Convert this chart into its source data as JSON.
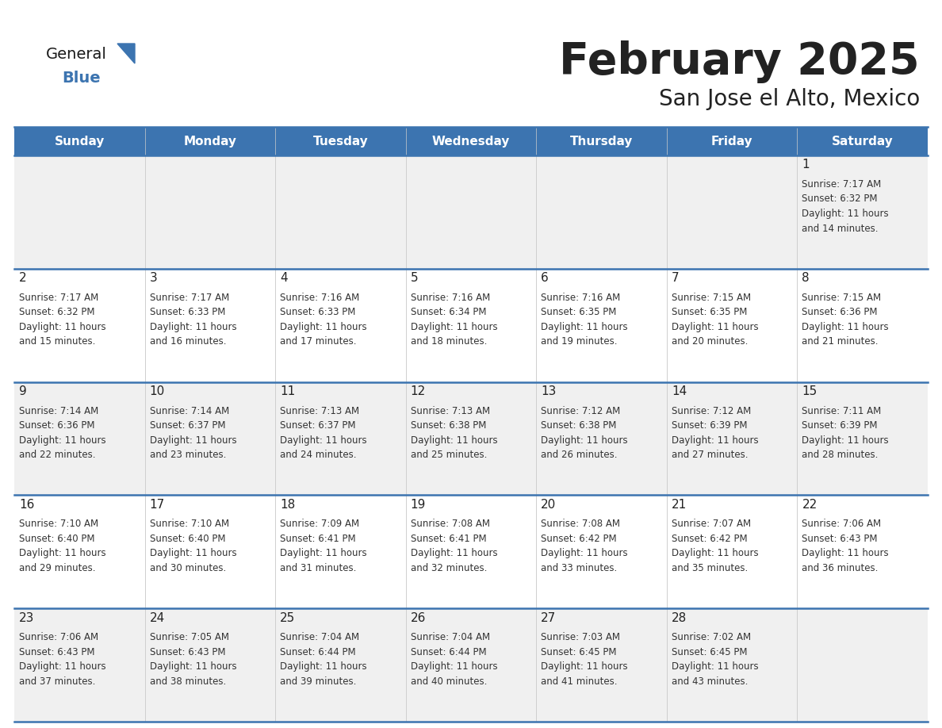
{
  "title": "February 2025",
  "subtitle": "San Jose el Alto, Mexico",
  "header_bg": "#3c74b0",
  "header_text": "#ffffff",
  "cell_bg_odd": "#f0f0f0",
  "cell_bg_even": "#ffffff",
  "border_color": "#3c74b0",
  "text_color": "#222222",
  "info_color": "#333333",
  "days_of_week": [
    "Sunday",
    "Monday",
    "Tuesday",
    "Wednesday",
    "Thursday",
    "Friday",
    "Saturday"
  ],
  "logo_general_color": "#1a1a1a",
  "logo_blue_color": "#3c74b0",
  "logo_triangle_color": "#3c74b0",
  "weeks": [
    [
      {
        "day": "",
        "info": ""
      },
      {
        "day": "",
        "info": ""
      },
      {
        "day": "",
        "info": ""
      },
      {
        "day": "",
        "info": ""
      },
      {
        "day": "",
        "info": ""
      },
      {
        "day": "",
        "info": ""
      },
      {
        "day": "1",
        "info": "Sunrise: 7:17 AM\nSunset: 6:32 PM\nDaylight: 11 hours\nand 14 minutes."
      }
    ],
    [
      {
        "day": "2",
        "info": "Sunrise: 7:17 AM\nSunset: 6:32 PM\nDaylight: 11 hours\nand 15 minutes."
      },
      {
        "day": "3",
        "info": "Sunrise: 7:17 AM\nSunset: 6:33 PM\nDaylight: 11 hours\nand 16 minutes."
      },
      {
        "day": "4",
        "info": "Sunrise: 7:16 AM\nSunset: 6:33 PM\nDaylight: 11 hours\nand 17 minutes."
      },
      {
        "day": "5",
        "info": "Sunrise: 7:16 AM\nSunset: 6:34 PM\nDaylight: 11 hours\nand 18 minutes."
      },
      {
        "day": "6",
        "info": "Sunrise: 7:16 AM\nSunset: 6:35 PM\nDaylight: 11 hours\nand 19 minutes."
      },
      {
        "day": "7",
        "info": "Sunrise: 7:15 AM\nSunset: 6:35 PM\nDaylight: 11 hours\nand 20 minutes."
      },
      {
        "day": "8",
        "info": "Sunrise: 7:15 AM\nSunset: 6:36 PM\nDaylight: 11 hours\nand 21 minutes."
      }
    ],
    [
      {
        "day": "9",
        "info": "Sunrise: 7:14 AM\nSunset: 6:36 PM\nDaylight: 11 hours\nand 22 minutes."
      },
      {
        "day": "10",
        "info": "Sunrise: 7:14 AM\nSunset: 6:37 PM\nDaylight: 11 hours\nand 23 minutes."
      },
      {
        "day": "11",
        "info": "Sunrise: 7:13 AM\nSunset: 6:37 PM\nDaylight: 11 hours\nand 24 minutes."
      },
      {
        "day": "12",
        "info": "Sunrise: 7:13 AM\nSunset: 6:38 PM\nDaylight: 11 hours\nand 25 minutes."
      },
      {
        "day": "13",
        "info": "Sunrise: 7:12 AM\nSunset: 6:38 PM\nDaylight: 11 hours\nand 26 minutes."
      },
      {
        "day": "14",
        "info": "Sunrise: 7:12 AM\nSunset: 6:39 PM\nDaylight: 11 hours\nand 27 minutes."
      },
      {
        "day": "15",
        "info": "Sunrise: 7:11 AM\nSunset: 6:39 PM\nDaylight: 11 hours\nand 28 minutes."
      }
    ],
    [
      {
        "day": "16",
        "info": "Sunrise: 7:10 AM\nSunset: 6:40 PM\nDaylight: 11 hours\nand 29 minutes."
      },
      {
        "day": "17",
        "info": "Sunrise: 7:10 AM\nSunset: 6:40 PM\nDaylight: 11 hours\nand 30 minutes."
      },
      {
        "day": "18",
        "info": "Sunrise: 7:09 AM\nSunset: 6:41 PM\nDaylight: 11 hours\nand 31 minutes."
      },
      {
        "day": "19",
        "info": "Sunrise: 7:08 AM\nSunset: 6:41 PM\nDaylight: 11 hours\nand 32 minutes."
      },
      {
        "day": "20",
        "info": "Sunrise: 7:08 AM\nSunset: 6:42 PM\nDaylight: 11 hours\nand 33 minutes."
      },
      {
        "day": "21",
        "info": "Sunrise: 7:07 AM\nSunset: 6:42 PM\nDaylight: 11 hours\nand 35 minutes."
      },
      {
        "day": "22",
        "info": "Sunrise: 7:06 AM\nSunset: 6:43 PM\nDaylight: 11 hours\nand 36 minutes."
      }
    ],
    [
      {
        "day": "23",
        "info": "Sunrise: 7:06 AM\nSunset: 6:43 PM\nDaylight: 11 hours\nand 37 minutes."
      },
      {
        "day": "24",
        "info": "Sunrise: 7:05 AM\nSunset: 6:43 PM\nDaylight: 11 hours\nand 38 minutes."
      },
      {
        "day": "25",
        "info": "Sunrise: 7:04 AM\nSunset: 6:44 PM\nDaylight: 11 hours\nand 39 minutes."
      },
      {
        "day": "26",
        "info": "Sunrise: 7:04 AM\nSunset: 6:44 PM\nDaylight: 11 hours\nand 40 minutes."
      },
      {
        "day": "27",
        "info": "Sunrise: 7:03 AM\nSunset: 6:45 PM\nDaylight: 11 hours\nand 41 minutes."
      },
      {
        "day": "28",
        "info": "Sunrise: 7:02 AM\nSunset: 6:45 PM\nDaylight: 11 hours\nand 43 minutes."
      },
      {
        "day": "",
        "info": ""
      }
    ]
  ]
}
